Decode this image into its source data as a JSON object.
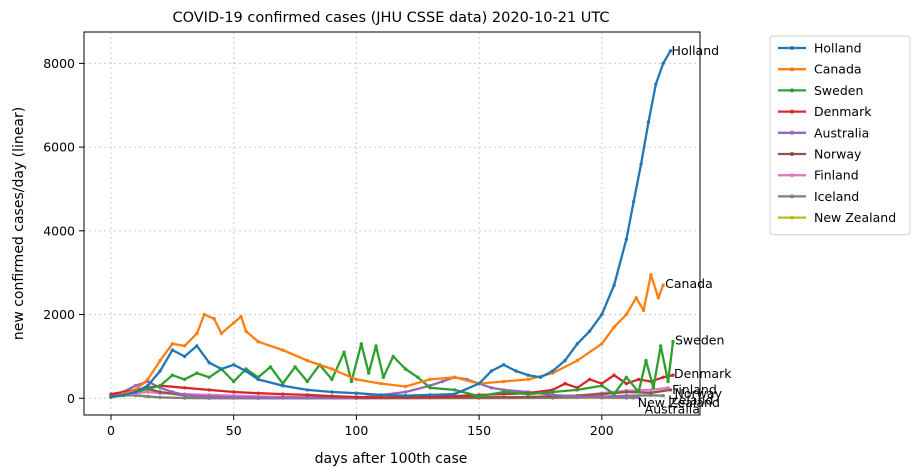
{
  "chart_data": {
    "type": "line",
    "title": "COVID-19 confirmed cases (JHU CSSE data) 2020-10-21 UTC",
    "xlabel": "days after 100th case",
    "ylabel": "new confirmed cases/day (linear)",
    "xlim": [
      -11,
      240
    ],
    "ylim": [
      -400,
      8750
    ],
    "xticks": [
      0,
      50,
      100,
      150,
      200
    ],
    "yticks": [
      0,
      2000,
      4000,
      6000,
      8000
    ],
    "grid": true,
    "legend_position": "outside-right",
    "series": [
      {
        "name": "Holland",
        "color": "#1f77b4",
        "end_label": "Holland",
        "x": [
          0,
          5,
          10,
          15,
          20,
          25,
          30,
          35,
          40,
          45,
          50,
          55,
          60,
          70,
          80,
          90,
          100,
          110,
          120,
          130,
          140,
          150,
          155,
          160,
          165,
          170,
          175,
          180,
          185,
          190,
          195,
          200,
          205,
          210,
          213,
          216,
          219,
          222,
          225,
          228
        ],
        "y": [
          40,
          70,
          150,
          300,
          650,
          1150,
          1000,
          1250,
          850,
          700,
          800,
          650,
          450,
          300,
          200,
          150,
          120,
          80,
          60,
          80,
          100,
          350,
          650,
          800,
          650,
          550,
          500,
          650,
          900,
          1300,
          1600,
          2000,
          2700,
          3800,
          4700,
          5600,
          6600,
          7500,
          8000,
          8300
        ]
      },
      {
        "name": "Canada",
        "color": "#ff7f0e",
        "end_label": "Canada",
        "x": [
          0,
          5,
          10,
          15,
          20,
          25,
          30,
          35,
          38,
          42,
          45,
          50,
          53,
          55,
          60,
          70,
          80,
          90,
          100,
          110,
          120,
          130,
          140,
          150,
          160,
          170,
          180,
          190,
          200,
          205,
          210,
          214,
          217,
          220,
          223,
          225
        ],
        "y": [
          30,
          100,
          200,
          450,
          900,
          1300,
          1250,
          1550,
          2000,
          1900,
          1550,
          1800,
          1950,
          1600,
          1350,
          1150,
          900,
          700,
          450,
          350,
          280,
          450,
          500,
          350,
          400,
          450,
          600,
          900,
          1300,
          1700,
          2000,
          2400,
          2100,
          2950,
          2400,
          2700
        ]
      },
      {
        "name": "Sweden",
        "color": "#2ca02c",
        "end_label": "Sweden",
        "x": [
          0,
          10,
          20,
          25,
          30,
          35,
          40,
          45,
          50,
          55,
          60,
          65,
          70,
          75,
          80,
          85,
          90,
          95,
          98,
          102,
          105,
          108,
          111,
          115,
          120,
          125,
          130,
          140,
          150,
          160,
          170,
          180,
          190,
          200,
          205,
          210,
          215,
          218,
          221,
          224,
          227,
          229
        ],
        "y": [
          20,
          150,
          300,
          550,
          450,
          600,
          500,
          700,
          400,
          700,
          500,
          750,
          350,
          750,
          400,
          800,
          450,
          1100,
          400,
          1300,
          600,
          1250,
          500,
          1000,
          700,
          500,
          250,
          200,
          50,
          150,
          100,
          150,
          200,
          300,
          100,
          500,
          150,
          900,
          250,
          1250,
          400,
          1350
        ]
      },
      {
        "name": "Denmark",
        "color": "#d62728",
        "end_label": "Denmark",
        "x": [
          0,
          10,
          20,
          30,
          40,
          50,
          60,
          70,
          80,
          90,
          100,
          110,
          120,
          130,
          140,
          150,
          160,
          170,
          180,
          185,
          190,
          195,
          200,
          205,
          210,
          215,
          220,
          225,
          229
        ],
        "y": [
          100,
          200,
          300,
          250,
          200,
          150,
          120,
          100,
          80,
          50,
          30,
          20,
          20,
          30,
          50,
          80,
          100,
          120,
          200,
          350,
          250,
          450,
          350,
          550,
          350,
          450,
          400,
          500,
          550
        ]
      },
      {
        "name": "Australia",
        "color": "#9467bd",
        "end_label": "Australia",
        "x": [
          0,
          5,
          10,
          15,
          20,
          25,
          30,
          40,
          50,
          60,
          80,
          100,
          120,
          130,
          135,
          140,
          145,
          150,
          155,
          160,
          170,
          180,
          190,
          200,
          210,
          215
        ],
        "y": [
          30,
          150,
          300,
          400,
          250,
          150,
          80,
          30,
          20,
          10,
          5,
          5,
          150,
          300,
          400,
          500,
          450,
          350,
          250,
          200,
          150,
          80,
          40,
          20,
          15,
          15
        ]
      },
      {
        "name": "Norway",
        "color": "#8c564b",
        "end_label": "Norway",
        "x": [
          0,
          5,
          10,
          15,
          20,
          30,
          40,
          50,
          70,
          100,
          130,
          150,
          170,
          190,
          200,
          210,
          220,
          228
        ],
        "y": [
          30,
          120,
          200,
          220,
          150,
          70,
          40,
          20,
          10,
          10,
          15,
          20,
          30,
          60,
          100,
          150,
          130,
          200
        ]
      },
      {
        "name": "Finland",
        "color": "#e377c2",
        "end_label": "Finland",
        "x": [
          0,
          5,
          10,
          15,
          20,
          30,
          40,
          50,
          70,
          100,
          130,
          150,
          170,
          190,
          200,
          210,
          220,
          227
        ],
        "y": [
          20,
          80,
          120,
          150,
          120,
          100,
          80,
          60,
          30,
          20,
          15,
          20,
          30,
          60,
          120,
          180,
          200,
          250
        ]
      },
      {
        "name": "Iceland",
        "color": "#7f7f7f",
        "end_label": "Iceland",
        "x": [
          0,
          5,
          10,
          15,
          20,
          30,
          40,
          60,
          100,
          150,
          180,
          190,
          200,
          210,
          220,
          225
        ],
        "y": [
          50,
          90,
          70,
          40,
          20,
          5,
          2,
          0,
          0,
          5,
          10,
          20,
          40,
          60,
          70,
          60
        ]
      },
      {
        "name": "New Zealand",
        "color": "#bcbd22",
        "end_label": "New Zealand",
        "x": [
          0,
          5,
          10,
          15,
          20,
          30,
          50,
          100,
          150,
          180,
          200,
          210,
          213
        ],
        "y": [
          30,
          60,
          70,
          50,
          20,
          5,
          1,
          0,
          3,
          5,
          5,
          3,
          3
        ]
      }
    ]
  }
}
